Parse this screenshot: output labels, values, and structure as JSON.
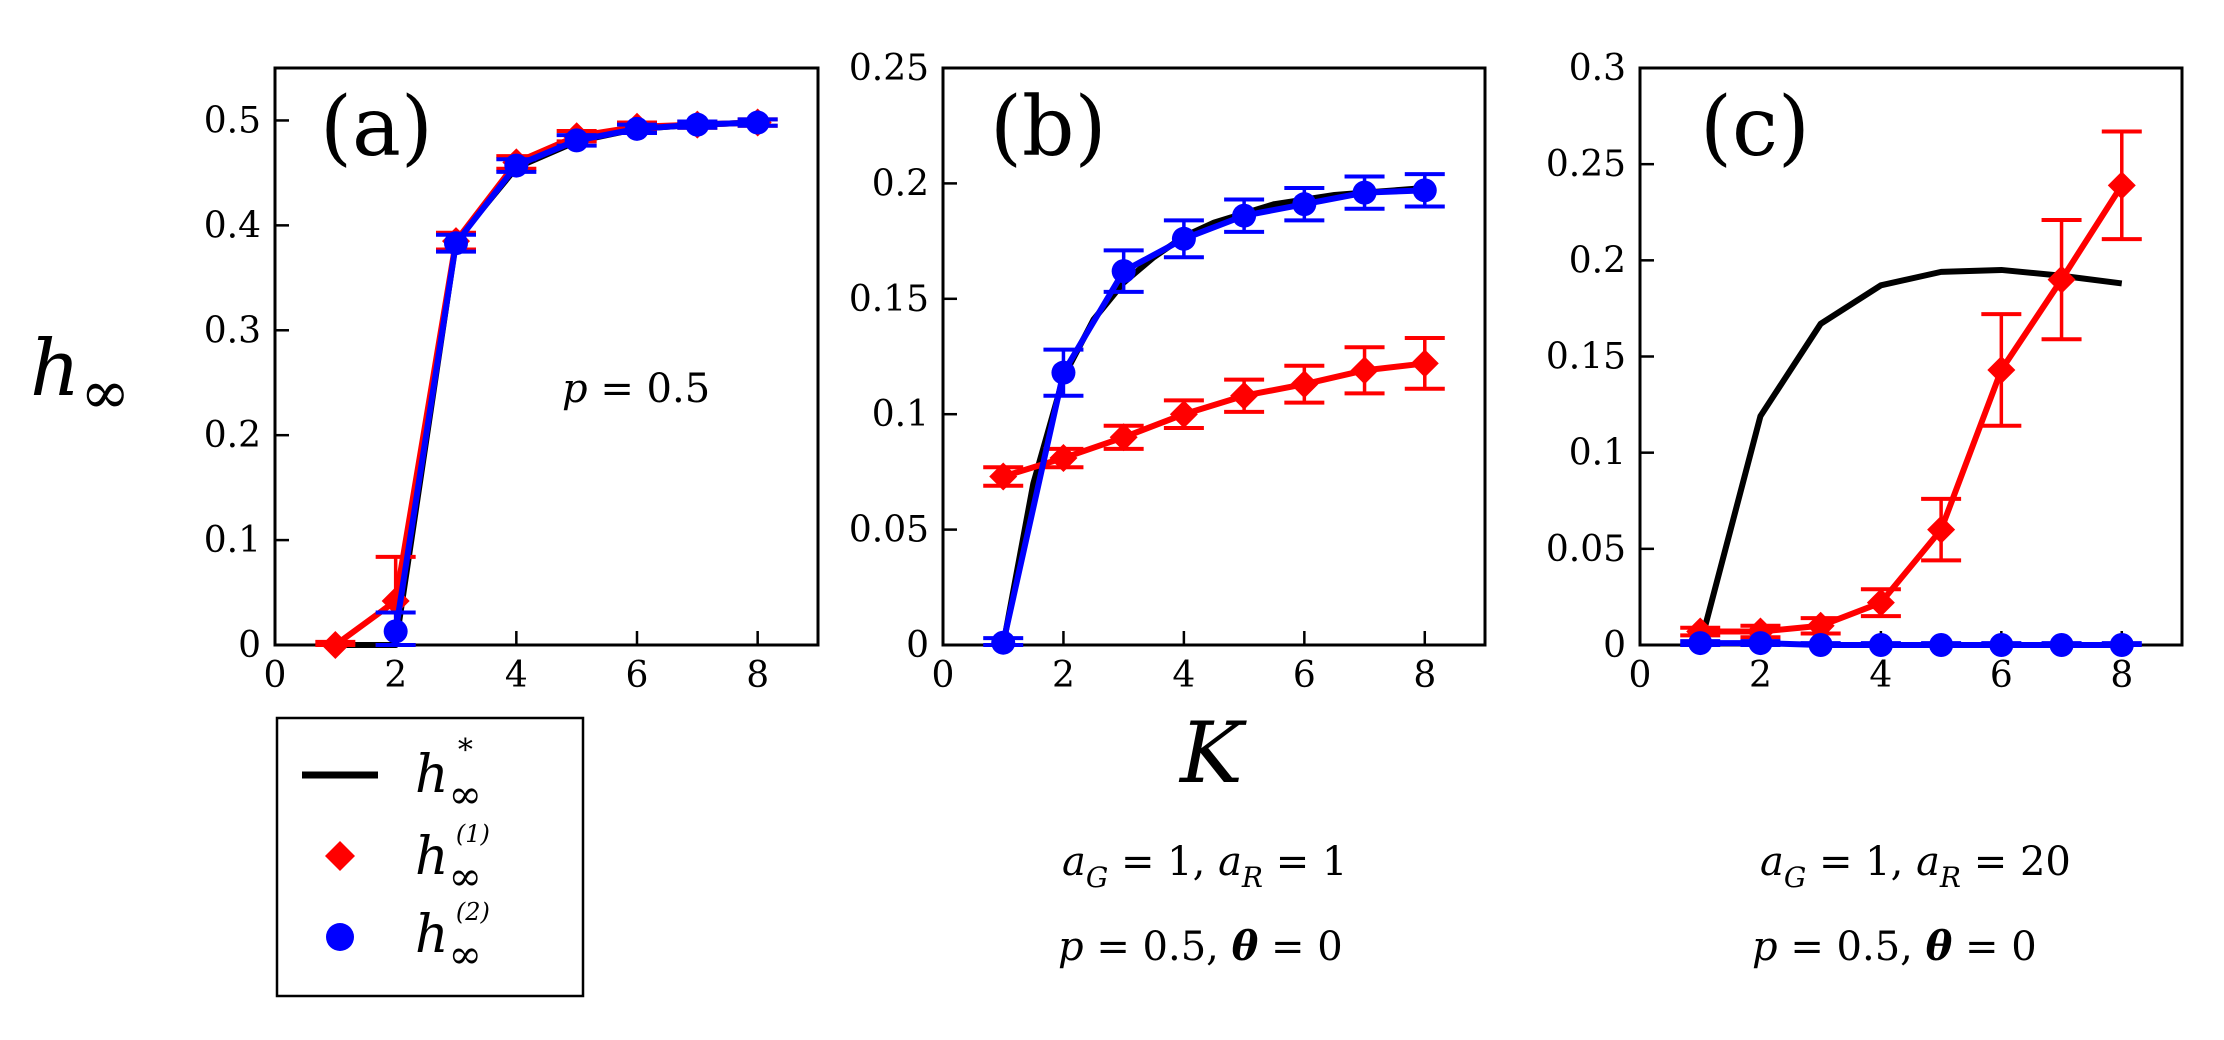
{
  "ylabel": {
    "main": "h",
    "sub": "∞"
  },
  "xlabel": "K",
  "colors": {
    "theory": "#000000",
    "sim1": "#ff0000",
    "sim2": "#0000ff"
  },
  "legend": {
    "theory": {
      "main": "h",
      "sub": "∞",
      "sup": "*"
    },
    "sim1": {
      "main": "h",
      "sub": "∞",
      "sup": "(1)"
    },
    "sim2": {
      "main": "h",
      "sub": "∞",
      "sup": "(2)"
    }
  },
  "annotations": {
    "a_p": {
      "sym": "p",
      "rest": " = 0.5"
    },
    "b_line1": {
      "a1": "a",
      "s1": "G",
      "t1": " = 1,  ",
      "a2": "a",
      "s2": "R",
      "t2": " = 1"
    },
    "b_line2": {
      "p": "p",
      "t1": " = 0.5,  ",
      "th": "θ",
      "t2": " = 0"
    },
    "c_line1": {
      "a1": "a",
      "s1": "G",
      "t1": " = 1,  ",
      "a2": "a",
      "s2": "R",
      "t2": " = 20"
    },
    "c_line2": {
      "p": "p",
      "t1": " = 0.5,  ",
      "th": "θ",
      "t2": " = 0"
    }
  },
  "chart_data": [
    {
      "panel": "(a)",
      "type": "line",
      "xlim": [
        0,
        9
      ],
      "ylim": [
        0,
        0.55
      ],
      "xticks": [
        "0",
        "2",
        "4",
        "6",
        "8"
      ],
      "yticks": [
        "0",
        "0.1",
        "0.2",
        "0.3",
        "0.4",
        "0.5"
      ],
      "xtick_values": [
        0,
        2,
        4,
        6,
        8
      ],
      "ytick_values": [
        0,
        0.1,
        0.2,
        0.3,
        0.4,
        0.5
      ],
      "series": [
        {
          "name": "h∞*",
          "style": "line",
          "x": [
            1,
            2,
            3,
            4,
            5,
            6,
            7,
            8
          ],
          "y": [
            0,
            0,
            0.385,
            0.455,
            0.48,
            0.492,
            0.496,
            0.498
          ]
        },
        {
          "name": "h∞(1)",
          "style": "diamond",
          "x": [
            1,
            2,
            3,
            4,
            5,
            6,
            7,
            8
          ],
          "y": [
            0,
            0.042,
            0.385,
            0.46,
            0.485,
            0.494,
            0.496,
            0.498
          ],
          "err": [
            0.003,
            0.042,
            0.008,
            0.006,
            0.005,
            0.004,
            0.003,
            0.003
          ]
        },
        {
          "name": "h∞(2)",
          "style": "circle",
          "x": [
            2,
            3,
            4,
            5,
            6,
            7,
            8
          ],
          "y": [
            0.013,
            0.383,
            0.457,
            0.481,
            0.492,
            0.496,
            0.498
          ],
          "err": [
            0.018,
            0.008,
            0.006,
            0.005,
            0.004,
            0.003,
            0.003
          ]
        }
      ]
    },
    {
      "panel": "(b)",
      "type": "line",
      "xlim": [
        0,
        9
      ],
      "ylim": [
        0,
        0.25
      ],
      "xticks": [
        "0",
        "2",
        "4",
        "6",
        "8"
      ],
      "yticks": [
        "0",
        "0.05",
        "0.1",
        "0.15",
        "0.2",
        "0.25"
      ],
      "xtick_values": [
        0,
        2,
        4,
        6,
        8
      ],
      "ytick_values": [
        0,
        0.05,
        0.1,
        0.15,
        0.2,
        0.25
      ],
      "series": [
        {
          "name": "h∞*",
          "style": "line",
          "x": [
            1,
            1.5,
            2,
            2.5,
            3,
            3.5,
            4,
            4.5,
            5,
            5.5,
            6,
            6.5,
            7,
            7.5,
            8
          ],
          "y": [
            0,
            0.07,
            0.116,
            0.141,
            0.157,
            0.168,
            0.177,
            0.183,
            0.187,
            0.191,
            0.193,
            0.195,
            0.196,
            0.197,
            0.198
          ]
        },
        {
          "name": "h∞(1)",
          "style": "diamond",
          "x": [
            1,
            2,
            3,
            4,
            5,
            6,
            7,
            8
          ],
          "y": [
            0.073,
            0.081,
            0.09,
            0.1,
            0.108,
            0.113,
            0.119,
            0.122
          ],
          "err": [
            0.004,
            0.004,
            0.005,
            0.006,
            0.007,
            0.008,
            0.01,
            0.011
          ]
        },
        {
          "name": "h∞(2)",
          "style": "circle",
          "x": [
            1,
            2,
            3,
            4,
            5,
            6,
            7,
            8
          ],
          "y": [
            0.001,
            0.118,
            0.162,
            0.176,
            0.186,
            0.191,
            0.196,
            0.197
          ],
          "err": [
            0.002,
            0.01,
            0.009,
            0.008,
            0.007,
            0.007,
            0.007,
            0.007
          ]
        }
      ]
    },
    {
      "panel": "(c)",
      "type": "line",
      "xlim": [
        0,
        9
      ],
      "ylim": [
        0,
        0.3
      ],
      "xticks": [
        "0",
        "2",
        "4",
        "6",
        "8"
      ],
      "yticks": [
        "0",
        "0.05",
        "0.1",
        "0.15",
        "0.2",
        "0.25",
        "0.3"
      ],
      "xtick_values": [
        0,
        2,
        4,
        6,
        8
      ],
      "ytick_values": [
        0,
        0.05,
        0.1,
        0.15,
        0.2,
        0.25,
        0.3
      ],
      "series": [
        {
          "name": "h∞*",
          "style": "line",
          "x": [
            1,
            2,
            3,
            4,
            5,
            6,
            7,
            8
          ],
          "y": [
            0,
            0.119,
            0.167,
            0.187,
            0.194,
            0.195,
            0.192,
            0.188
          ]
        },
        {
          "name": "h∞(1)",
          "style": "diamond",
          "x": [
            1,
            2,
            3,
            4,
            5,
            6,
            7,
            8
          ],
          "y": [
            0.007,
            0.007,
            0.01,
            0.022,
            0.06,
            0.143,
            0.19,
            0.239
          ],
          "err": [
            0.002,
            0.003,
            0.004,
            0.007,
            0.016,
            0.029,
            0.031,
            0.028
          ]
        },
        {
          "name": "h∞(2)",
          "style": "circle",
          "x": [
            1,
            2,
            3,
            4,
            5,
            6,
            7,
            8
          ],
          "y": [
            0.001,
            0.001,
            0,
            0,
            0,
            0,
            0,
            0
          ],
          "err": [
            0.001,
            0.001,
            0.001,
            0.001,
            0.001,
            0.001,
            0.001,
            0.001
          ]
        }
      ]
    }
  ]
}
